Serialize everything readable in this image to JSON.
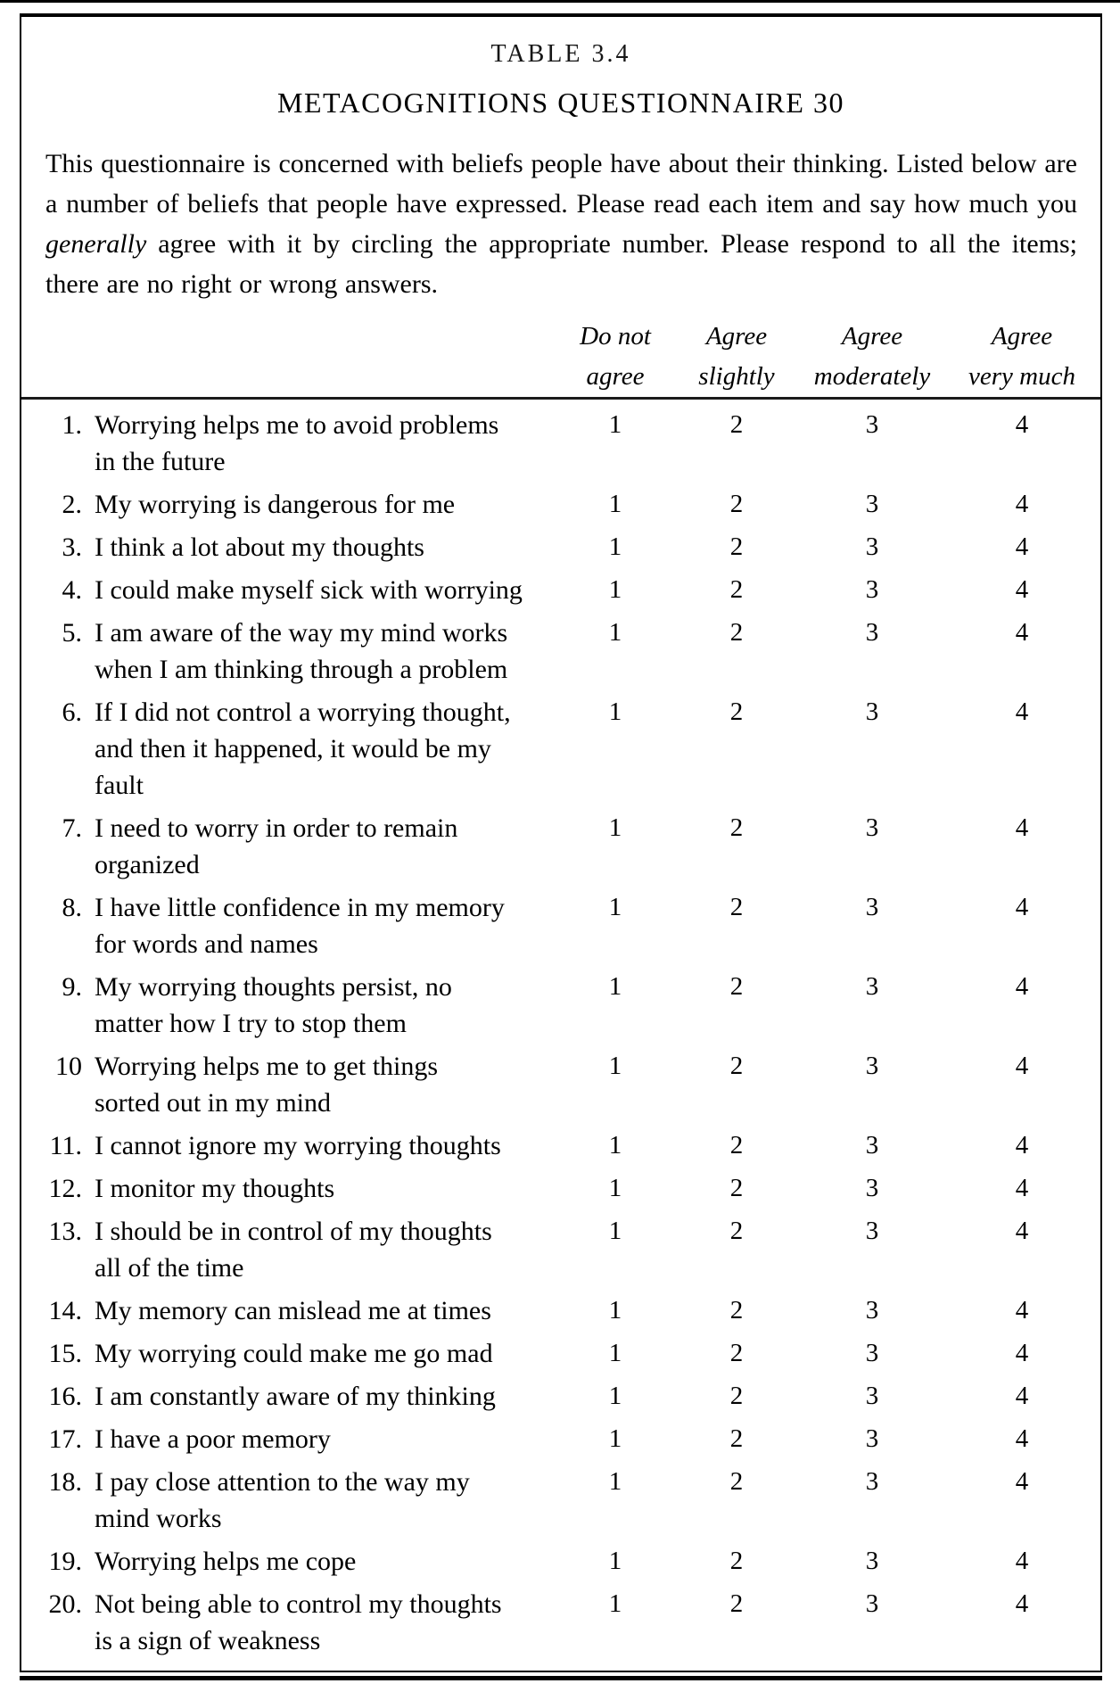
{
  "table": {
    "label": "TABLE 3.4",
    "title": "METACOGNITIONS QUESTIONNAIRE 30",
    "intro": {
      "before": "This questionnaire is concerned with beliefs people have about their thinking. Listed below are a number of beliefs that people have expressed. Please read each item and say how much you ",
      "emphasis": "generally",
      "after": " agree with it by circling the appropriate number. Please respond to all the items; there are no right or wrong answers."
    },
    "columns": [
      {
        "line1": "Do not",
        "line2": "agree"
      },
      {
        "line1": "Agree",
        "line2": "slightly"
      },
      {
        "line1": "Agree",
        "line2": "moderately"
      },
      {
        "line1": "Agree",
        "line2": "very much"
      }
    ],
    "ratings": [
      "1",
      "2",
      "3",
      "4"
    ],
    "items": [
      {
        "num": "1.",
        "lines": [
          "Worrying helps me to avoid problems",
          "in the future"
        ]
      },
      {
        "num": "2.",
        "lines": [
          "My worrying is dangerous for me"
        ]
      },
      {
        "num": "3.",
        "lines": [
          "I think a lot about my thoughts"
        ]
      },
      {
        "num": "4.",
        "lines": [
          "I could make myself sick with worrying"
        ]
      },
      {
        "num": "5.",
        "lines": [
          "I am aware of the way my mind works",
          "when I am thinking through a problem"
        ]
      },
      {
        "num": "6.",
        "lines": [
          "If I did not control a worrying thought,",
          "and then it happened, it would be my",
          "fault"
        ]
      },
      {
        "num": "7.",
        "lines": [
          "I need to worry in order to remain",
          "organized"
        ]
      },
      {
        "num": "8.",
        "lines": [
          "I have little confidence in my memory",
          "for words and names"
        ]
      },
      {
        "num": "9.",
        "lines": [
          "My worrying thoughts persist, no",
          "matter how I try to stop them"
        ]
      },
      {
        "num": "10",
        "lines": [
          "Worrying helps me to get things",
          "sorted out in my mind"
        ]
      },
      {
        "num": "11.",
        "lines": [
          "I cannot ignore my worrying thoughts"
        ]
      },
      {
        "num": "12.",
        "lines": [
          "I monitor my thoughts"
        ]
      },
      {
        "num": "13.",
        "lines": [
          "I should be in control of my thoughts",
          "all of the time"
        ]
      },
      {
        "num": "14.",
        "lines": [
          "My memory can mislead me at times"
        ]
      },
      {
        "num": "15.",
        "lines": [
          "My worrying could make me go mad"
        ]
      },
      {
        "num": "16.",
        "lines": [
          "I am constantly aware of my thinking"
        ]
      },
      {
        "num": "17.",
        "lines": [
          "I have a poor memory"
        ]
      },
      {
        "num": "18.",
        "lines": [
          "I pay close attention to the way my",
          "mind works"
        ]
      },
      {
        "num": "19.",
        "lines": [
          "Worrying helps me cope"
        ]
      },
      {
        "num": "20.",
        "lines": [
          "Not being able to control my thoughts",
          "is a sign of weakness"
        ]
      }
    ]
  }
}
